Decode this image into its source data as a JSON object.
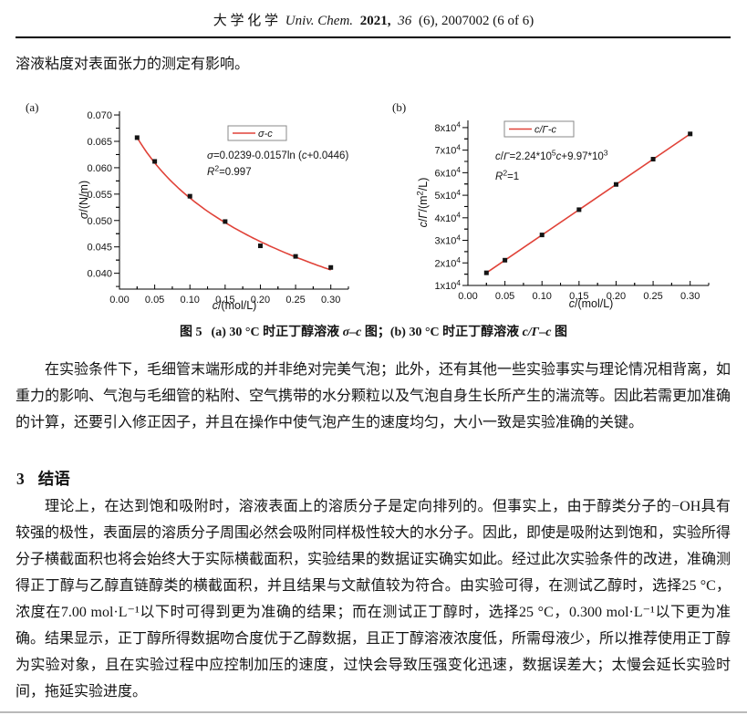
{
  "header": {
    "cjk_title": "大 学 化 学",
    "journal": "Univ. Chem.",
    "year": "2021,",
    "volume": "36",
    "issue_info": "(6), 2007002 (6 of 6)"
  },
  "intro_paragraph": "溶液粘度对表面张力的测定有影响。",
  "figure": {
    "caption": {
      "label": "图 5",
      "part1": "(a) 30 °C 时正丁醇溶液 ",
      "var1": "σ–c",
      "part2": " 图；(b) 30 °C 时正丁醇溶液 ",
      "var2": "c/Γ–c",
      "part3": " 图"
    }
  },
  "chart_data": [
    {
      "type": "scatter",
      "panel_label": "(a)",
      "legend": "~σ-c~",
      "equation": "~σ~=0.0239-0.0157ln (~c~+0.0446)",
      "r_squared": "~R~^2^=0.997",
      "xlabel": "~c~/(mol/L)",
      "ylabel": "~σ~/(N/m)",
      "x": [
        0.025,
        0.05,
        0.1,
        0.15,
        0.2,
        0.25,
        0.3
      ],
      "y": [
        0.0657,
        0.0612,
        0.0546,
        0.0498,
        0.0452,
        0.0432,
        0.0411
      ],
      "fit": {
        "type": "log",
        "formula": "sigma = 0.0239 - 0.0157*ln(c+0.0446)",
        "a": 0.0239,
        "b": -0.0157,
        "c0": 0.0446,
        "r2": 0.997
      },
      "xlim": [
        0,
        0.325
      ],
      "ylim": [
        0.037,
        0.0707
      ],
      "x_ticks": [
        "0.00",
        "0.05",
        "0.10",
        "0.15",
        "0.20",
        "0.25",
        "0.30"
      ],
      "x_tick_values": [
        0,
        0.05,
        0.1,
        0.15,
        0.2,
        0.25,
        0.3
      ],
      "y_ticks": [
        "0.040",
        "0.045",
        "0.050",
        "0.055",
        "0.060",
        "0.065",
        "0.070"
      ],
      "y_tick_values": [
        0.04,
        0.045,
        0.05,
        0.055,
        0.06,
        0.065,
        0.07
      ],
      "line_color": "#e04238",
      "marker_color": "#141414",
      "grid": false,
      "legend_position": "top-center"
    },
    {
      "type": "scatter",
      "panel_label": "(b)",
      "legend": "~c/Γ-c~",
      "equation": "~c~/~Γ~=2.24*10^5^~c~+9.97*10^3^",
      "r_squared": "~R~^2^=1",
      "xlabel": "~c~/(mol/L)",
      "ylabel": "~c~/~Γ~/(m^2^/L)",
      "x": [
        0.025,
        0.05,
        0.1,
        0.15,
        0.2,
        0.25,
        0.3
      ],
      "y": [
        15600,
        21200,
        32400,
        43600,
        54800,
        66000,
        77200
      ],
      "fit": {
        "type": "linear",
        "formula": "c/Gamma = 2.24e5*c + 9.97e3",
        "slope": 224000,
        "intercept": 9970,
        "r2": 1
      },
      "xlim": [
        0,
        0.325
      ],
      "ylim": [
        10000,
        83200
      ],
      "x_ticks": [
        "0.00",
        "0.05",
        "0.10",
        "0.15",
        "0.20",
        "0.25",
        "0.30"
      ],
      "x_tick_values": [
        0,
        0.05,
        0.1,
        0.15,
        0.2,
        0.25,
        0.3
      ],
      "y_ticks": [
        "1x10^4^",
        "2x10^4^",
        "3x10^4^",
        "4x10^4^",
        "5x10^4^",
        "6x10^4^",
        "7x10^4^",
        "8x10^4^"
      ],
      "y_tick_values": [
        10000,
        20000,
        30000,
        40000,
        50000,
        60000,
        70000,
        80000
      ],
      "line_color": "#e04238",
      "marker_color": "#141414",
      "grid": false,
      "legend_position": "top-left"
    }
  ],
  "paragraphs": {
    "p2": "在实验条件下，毛细管末端形成的并非绝对完美气泡；此外，还有其他一些实验事实与理论情况相背离，如重力的影响、气泡与毛细管的粘附、空气携带的水分颗粒以及气泡自身生长所产生的湍流等。因此若需更加准确的计算，还要引入修正因子，并且在操作中使气泡产生的速度均匀，大小一致是实验准确的关键。",
    "p3": "理论上，在达到饱和吸附时，溶液表面上的溶质分子是定向排列的。但事实上，由于醇类分子的−OH具有较强的极性，表面层的溶质分子周围必然会吸附同样极性较大的水分子。因此，即使是吸附达到饱和，实验所得分子横截面积也将会始终大于实际横截面积，实验结果的数据证实确实如此。经过此次实验条件的改进，准确测得正丁醇与乙醇直链醇类的横截面积，并且结果与文献值较为符合。由实验可得，在测试乙醇时，选择25 °C，浓度在7.00 mol·L⁻¹以下时可得到更为准确的结果；而在测试正丁醇时，选择25 °C，0.300 mol·L⁻¹以下更为准确。结果显示，正丁醇所得数据吻合度优于乙醇数据，且正丁醇溶液浓度低，所需母液少，所以推荐使用正丁醇为实验对象，且在实验过程中应控制加压的速度，过快会导致压强变化迅速，数据误差大；太慢会延长实验时间，拖延实验进度。"
  },
  "section": {
    "number": "3",
    "title": "结语"
  }
}
